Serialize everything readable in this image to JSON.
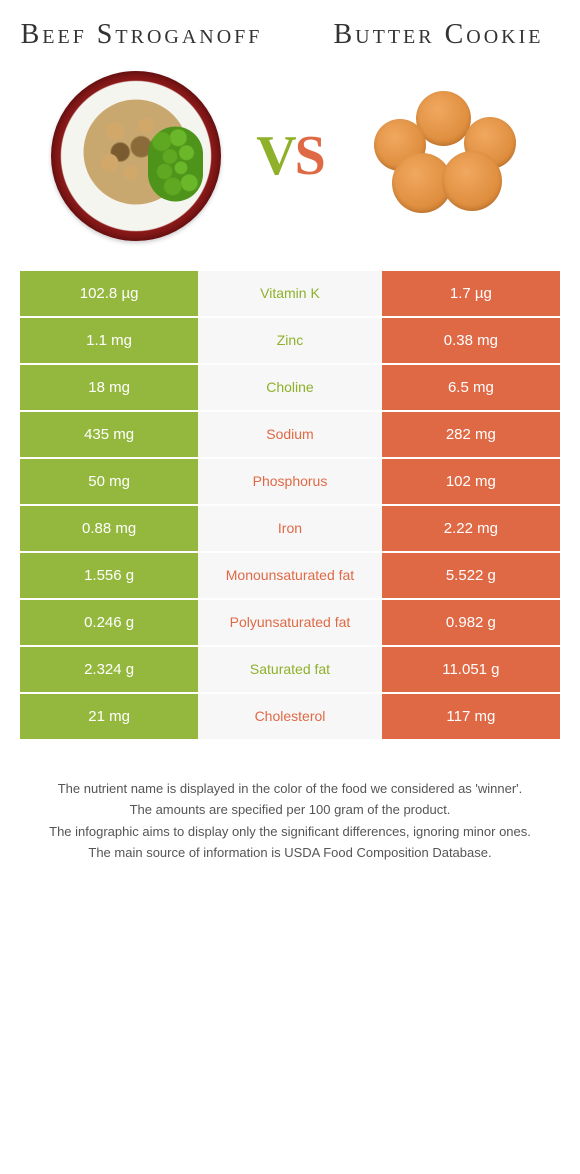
{
  "titles": {
    "left": "Beef Stroganoff",
    "right": "Butter Cookie"
  },
  "vs": {
    "v": "V",
    "s": "S"
  },
  "colors": {
    "left": "#94b83e",
    "right": "#e06945",
    "midBg": "#f7f7f7",
    "leftText": "#8fb02b",
    "rightText": "#e06945"
  },
  "rows": [
    {
      "nutrient": "Vitamin K",
      "left": "102.8 µg",
      "right": "1.7 µg",
      "winner": "left"
    },
    {
      "nutrient": "Zinc",
      "left": "1.1 mg",
      "right": "0.38 mg",
      "winner": "left"
    },
    {
      "nutrient": "Choline",
      "left": "18 mg",
      "right": "6.5 mg",
      "winner": "left"
    },
    {
      "nutrient": "Sodium",
      "left": "435 mg",
      "right": "282 mg",
      "winner": "right"
    },
    {
      "nutrient": "Phosphorus",
      "left": "50 mg",
      "right": "102 mg",
      "winner": "right"
    },
    {
      "nutrient": "Iron",
      "left": "0.88 mg",
      "right": "2.22 mg",
      "winner": "right"
    },
    {
      "nutrient": "Monounsaturated fat",
      "left": "1.556 g",
      "right": "5.522 g",
      "winner": "right"
    },
    {
      "nutrient": "Polyunsaturated fat",
      "left": "0.246 g",
      "right": "0.982 g",
      "winner": "right"
    },
    {
      "nutrient": "Saturated fat",
      "left": "2.324 g",
      "right": "11.051 g",
      "winner": "left"
    },
    {
      "nutrient": "Cholesterol",
      "left": "21 mg",
      "right": "117 mg",
      "winner": "right"
    }
  ],
  "footer": {
    "l1": "The nutrient name is displayed in the color of the food we considered as 'winner'.",
    "l2": "The amounts are specified per 100 gram of the product.",
    "l3": "The infographic aims to display only the significant differences, ignoring minor ones.",
    "l4": "The main source of information is USDA Food Composition Database."
  }
}
